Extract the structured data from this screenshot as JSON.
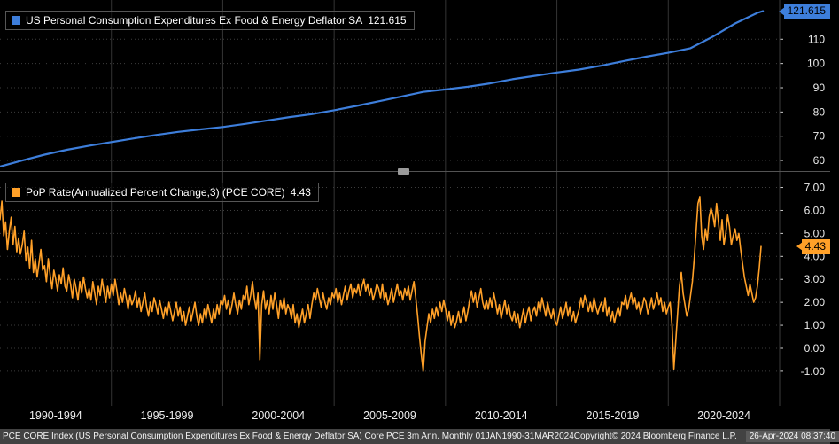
{
  "chart_data": [
    {
      "type": "line",
      "panel": "top",
      "title": "US Personal Consumption Expenditures Ex Food & Energy Deflator SA",
      "last_value_label": "121.615",
      "color": "#3d7edb",
      "y_ticks": [
        "110",
        "100",
        "90",
        "80",
        "70",
        "60"
      ],
      "ylim": [
        56,
        124
      ],
      "x": [
        1990,
        1991,
        1992,
        1993,
        1994,
        1995,
        1996,
        1997,
        1998,
        1999,
        2000,
        2001,
        2002,
        2003,
        2004,
        2005,
        2006,
        2007,
        2008,
        2009,
        2010,
        2011,
        2012,
        2013,
        2014,
        2015,
        2016,
        2017,
        2018,
        2019,
        2020,
        2021,
        2022,
        2023,
        2024,
        2024.25
      ],
      "values": [
        57.5,
        60.0,
        62.4,
        64.4,
        66.1,
        67.6,
        69.1,
        70.5,
        71.8,
        72.8,
        73.8,
        75.1,
        76.5,
        77.9,
        79.1,
        80.7,
        82.5,
        84.4,
        86.3,
        88.3,
        89.3,
        90.4,
        91.8,
        93.5,
        94.9,
        96.3,
        97.5,
        99.1,
        101.0,
        102.8,
        104.4,
        106.3,
        111.1,
        116.5,
        120.9,
        121.615
      ]
    },
    {
      "type": "line",
      "panel": "bottom",
      "title": "PoP Rate(Annualized Percent Change,3) (PCE CORE)",
      "last_value_label": "4.43",
      "color": "#ffa028",
      "y_ticks": [
        "7.00",
        "6.00",
        "5.00",
        "4.00",
        "3.00",
        "2.00",
        "1.00",
        "0.00",
        "-1.00"
      ],
      "ylim": [
        -2.2,
        7.6
      ],
      "start_year": 1990.0,
      "frequency_per_year": 12,
      "start": "1990-01",
      "end": "2024-03",
      "values": [
        5.6,
        6.4,
        4.9,
        5.5,
        4.3,
        5.1,
        5.7,
        4.5,
        5.3,
        4.2,
        4.8,
        4.1,
        4.5,
        5.1,
        3.8,
        4.4,
        3.5,
        4.7,
        3.3,
        3.9,
        3.1,
        3.7,
        4.3,
        3.4,
        3.6,
        2.9,
        3.9,
        3.2,
        2.6,
        3.4,
        3.0,
        2.5,
        3.2,
        2.8,
        3.5,
        2.7,
        2.5,
        3.2,
        2.8,
        2.2,
        3.0,
        2.6,
        2.1,
        2.9,
        2.4,
        3.1,
        2.6,
        2.2,
        2.6,
        2.1,
        2.9,
        2.4,
        1.9,
        2.7,
        2.3,
        3.0,
        2.5,
        2.0,
        2.7,
        2.2,
        2.8,
        2.3,
        3.0,
        2.5,
        1.9,
        2.4,
        2.0,
        2.6,
        2.2,
        1.7,
        2.3,
        1.9,
        2.1,
        2.5,
        1.8,
        2.2,
        1.6,
        2.0,
        2.4,
        1.8,
        1.4,
        2.0,
        1.6,
        2.2,
        1.9,
        1.5,
        2.1,
        1.7,
        1.3,
        1.8,
        1.4,
        2.0,
        1.6,
        1.2,
        1.6,
        2.0,
        1.4,
        1.8,
        1.2,
        1.6,
        1.0,
        1.4,
        1.8,
        1.2,
        1.6,
        2.0,
        1.4,
        1.0,
        1.5,
        1.1,
        1.7,
        1.3,
        1.9,
        1.5,
        1.1,
        1.7,
        1.3,
        1.9,
        1.5,
        2.1,
        1.9,
        2.3,
        1.7,
        2.1,
        1.5,
        1.9,
        2.4,
        1.9,
        1.5,
        2.1,
        1.7,
        2.3,
        2.1,
        2.7,
        1.9,
        2.3,
        2.9,
        2.2,
        1.7,
        2.4,
        -0.5,
        1.9,
        2.5,
        1.7,
        2.1,
        1.5,
        2.3,
        1.7,
        2.4,
        1.9,
        1.3,
        2.1,
        1.7,
        2.2,
        1.5,
        1.9,
        1.7,
        1.3,
        1.9,
        1.1,
        1.5,
        0.9,
        1.3,
        1.7,
        1.1,
        1.5,
        1.9,
        1.3,
        1.9,
        2.4,
        2.1,
        2.6,
        2.2,
        1.8,
        2.4,
        2.0,
        1.7,
        2.2,
        1.9,
        2.4,
        2.2,
        2.6,
        2.0,
        2.4,
        1.9,
        2.3,
        2.7,
        2.1,
        2.5,
        2.8,
        2.2,
        2.6,
        2.4,
        2.8,
        2.3,
        2.7,
        3.0,
        2.5,
        2.8,
        2.3,
        2.6,
        2.1,
        2.4,
        2.8,
        2.6,
        2.2,
        2.8,
        2.1,
        2.4,
        1.9,
        2.2,
        2.6,
        2.0,
        2.4,
        2.8,
        2.3,
        2.5,
        2.1,
        2.6,
        2.3,
        2.7,
        2.1,
        2.5,
        2.9,
        2.2,
        1.4,
        0.5,
        -0.3,
        -1.0,
        0.3,
        0.9,
        1.5,
        1.1,
        1.7,
        1.3,
        1.8,
        1.4,
        2.0,
        1.6,
        2.1,
        1.7,
        1.2,
        1.6,
        1.0,
        1.4,
        0.9,
        1.2,
        1.6,
        1.1,
        1.4,
        1.8,
        1.2,
        1.6,
        2.1,
        2.5,
        2.0,
        2.4,
        1.8,
        2.2,
        2.6,
        2.0,
        1.7,
        2.1,
        1.7,
        2.2,
        1.8,
        2.4,
        2.0,
        1.5,
        1.9,
        1.3,
        1.7,
        2.1,
        1.5,
        1.9,
        1.4,
        1.2,
        1.6,
        1.1,
        1.5,
        0.9,
        1.3,
        1.7,
        1.1,
        1.5,
        1.8,
        1.2,
        1.6,
        1.8,
        1.4,
        2.0,
        1.6,
        2.2,
        1.8,
        1.4,
        2.0,
        1.6,
        1.3,
        1.7,
        1.2,
        1.0,
        1.4,
        1.8,
        1.3,
        1.6,
        2.0,
        1.4,
        1.8,
        1.2,
        1.6,
        1.1,
        1.4,
        1.7,
        2.2,
        1.8,
        2.3,
        2.0,
        1.6,
        2.0,
        1.6,
        2.2,
        1.8,
        1.5,
        1.8,
        2.0,
        1.6,
        2.2,
        1.4,
        1.8,
        1.2,
        1.6,
        1.1,
        1.5,
        1.8,
        1.4,
        2.0,
        1.9,
        2.3,
        1.7,
        2.1,
        2.4,
        1.9,
        2.2,
        1.7,
        2.0,
        1.5,
        1.8,
        2.2,
        2.0,
        1.5,
        1.8,
        2.2,
        1.7,
        2.0,
        2.4,
        1.9,
        2.2,
        1.6,
        2.0,
        1.5,
        1.8,
        2.0,
        1.0,
        -0.9,
        0.3,
        1.5,
        2.7,
        3.3,
        2.4,
        1.9,
        1.4,
        1.7,
        2.3,
        2.9,
        3.9,
        5.1,
        6.3,
        6.6,
        4.9,
        4.3,
        5.2,
        4.7,
        5.7,
        6.1,
        5.8,
        5.3,
        6.3,
        5.5,
        4.7,
        5.6,
        4.5,
        5.0,
        5.8,
        5.3,
        4.5,
        4.9,
        5.2,
        4.7,
        5.0,
        4.3,
        3.7,
        3.1,
        2.7,
        2.3,
        2.8,
        2.4,
        2.0,
        2.2,
        2.7,
        3.5,
        4.43
      ]
    }
  ],
  "x_axis": {
    "range": [
      1990,
      2025
    ],
    "labels": [
      "1990-1994",
      "1995-1999",
      "2000-2004",
      "2005-2009",
      "2010-2014",
      "2015-2019",
      "2020-2024"
    ],
    "gridline_years": [
      1995,
      2000,
      2005,
      2010,
      2015,
      2020
    ]
  },
  "footer": {
    "description": "PCE CORE Index (US Personal Consumption Expenditures Ex Food & Energy Deflator SA) Core PCE 3m Ann.  Monthly 01JAN1990-31MAR2024",
    "copyright": "Copyright© 2024 Bloomberg Finance L.P.",
    "timestamp": "26-Apr-2024 08:37:40"
  }
}
